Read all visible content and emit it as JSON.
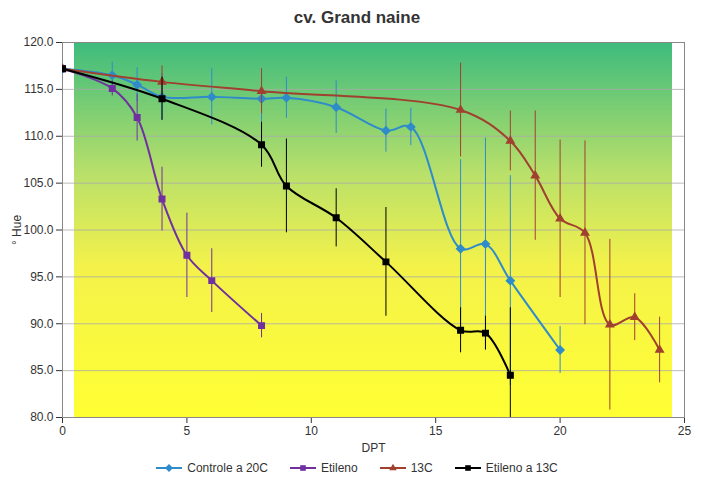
{
  "chart_data": {
    "type": "line",
    "title": "cv. Grand naine",
    "x_label": "DPT",
    "y_label": "° Hue",
    "xlim": [
      0,
      25
    ],
    "xticks": [
      0,
      5,
      10,
      15,
      20,
      25
    ],
    "ylim": [
      80,
      120
    ],
    "yticks": [
      {
        "value": 80,
        "label": "80.0"
      },
      {
        "value": 85,
        "label": "85.0"
      },
      {
        "value": 90,
        "label": "90.0"
      },
      {
        "value": 95,
        "label": "95.0"
      },
      {
        "value": 100,
        "label": "100.0"
      },
      {
        "value": 105,
        "label": "105.0"
      },
      {
        "value": 110,
        "label": "110.0"
      },
      {
        "value": 115,
        "label": "115.0"
      },
      {
        "value": 120,
        "label": "120.0"
      }
    ],
    "grid": true,
    "legend": "bottom",
    "series": [
      {
        "name": "Controle a 20C",
        "color": "#2f8ccb",
        "marker": "diamond",
        "x": [
          0,
          2,
          3,
          4,
          6,
          8,
          9,
          11,
          13,
          14,
          16,
          17,
          18,
          20
        ],
        "values": [
          117.2,
          116.5,
          115.5,
          114.2,
          114.2,
          114.0,
          114.1,
          113.1,
          110.6,
          111.0,
          98.0,
          98.5,
          94.6,
          87.2
        ],
        "errors": [
          0,
          1.4,
          1.8,
          2.5,
          3.0,
          2.5,
          2.2,
          2.8,
          2.3,
          2.0,
          9.5,
          11.3,
          11.2,
          2.5
        ]
      },
      {
        "name": "Etileno",
        "color": "#7030a0",
        "marker": "square",
        "x": [
          0,
          2,
          3,
          4,
          5,
          6,
          8
        ],
        "values": [
          117.2,
          115.1,
          112.0,
          103.3,
          97.3,
          94.6,
          89.8
        ],
        "errors": [
          0,
          0.8,
          2.5,
          3.4,
          4.5,
          3.4,
          1.3
        ]
      },
      {
        "name": "13C",
        "color": "#a0402f",
        "marker": "triangle",
        "x": [
          0,
          4,
          8,
          16,
          18,
          19,
          20,
          21,
          22,
          23,
          24
        ],
        "values": [
          117.2,
          115.8,
          114.8,
          112.8,
          109.5,
          105.8,
          101.2,
          99.7,
          89.9,
          90.7,
          87.2
        ],
        "errors": [
          0,
          1.7,
          2.4,
          5.0,
          3.2,
          6.9,
          8.4,
          9.8,
          9.1,
          2.5,
          3.5
        ]
      },
      {
        "name": "Etileno a 13C",
        "color": "#000000",
        "marker": "square",
        "x": [
          0,
          4,
          8,
          9,
          11,
          13,
          16,
          17,
          18
        ],
        "values": [
          117.2,
          114.0,
          109.1,
          104.7,
          101.3,
          96.6,
          89.3,
          89.0,
          84.5
        ],
        "errors": [
          0,
          2.3,
          2.4,
          5.0,
          3.1,
          5.8,
          2.4,
          1.8,
          7.2
        ]
      }
    ]
  }
}
